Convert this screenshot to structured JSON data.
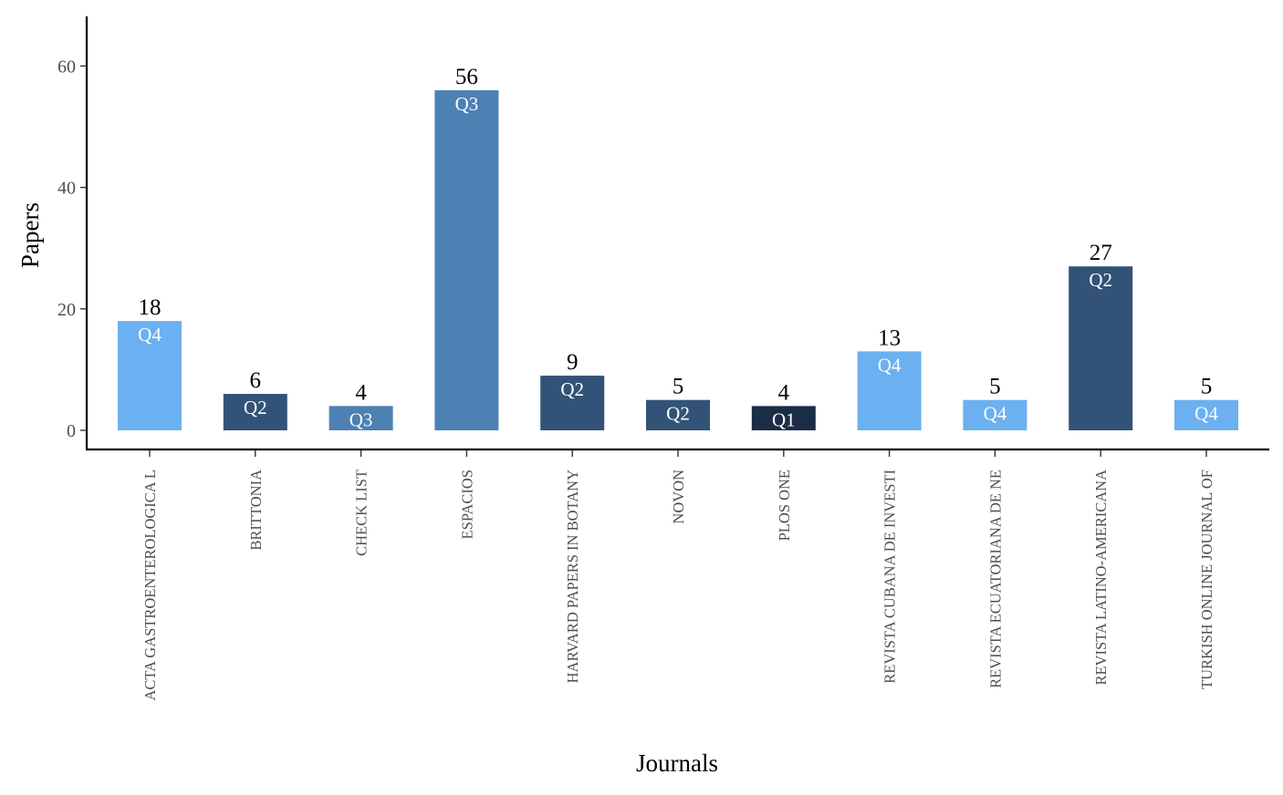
{
  "chart_data": {
    "type": "bar",
    "xlabel": "Journals",
    "ylabel": "Papers",
    "ylim": [
      0,
      68
    ],
    "yticks": [
      0,
      20,
      40,
      60
    ],
    "grid": false,
    "legend": "none",
    "categories": [
      "ACTA GASTROENTEROLOGICA L",
      "BRITTONIA",
      "CHECK LIST",
      "ESPACIOS",
      "HARVARD PAPERS IN BOTANY",
      "NOVON",
      "PLOS ONE",
      "REVISTA CUBANA DE INVESTI",
      "REVISTA ECUATORIANA DE NE",
      "REVISTA LATINO-AMERICANA",
      "TURKISH ONLINE JOURNAL OF"
    ],
    "values": [
      18,
      6,
      4,
      56,
      9,
      5,
      4,
      13,
      5,
      27,
      5
    ],
    "quartiles": [
      "Q4",
      "Q2",
      "Q3",
      "Q3",
      "Q2",
      "Q2",
      "Q1",
      "Q4",
      "Q4",
      "Q2",
      "Q4"
    ],
    "quartile_colors": {
      "Q1": "#1b2c45",
      "Q2": "#325377",
      "Q3": "#4d80b3",
      "Q4": "#6bb0f0"
    }
  }
}
